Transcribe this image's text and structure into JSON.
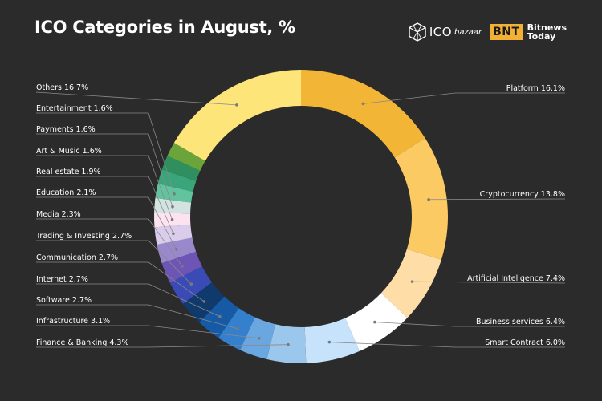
{
  "header": {
    "title": "ICO Categories in August, %",
    "logo_ico": "ICO",
    "logo_bazaar": "bazaar",
    "logo_bnt": "BNT",
    "logo_bitnews_line1": "Bitnews",
    "logo_bitnews_line2": "Today"
  },
  "chart_data": {
    "type": "donut",
    "title": "ICO Categories in August, %",
    "unit": "%",
    "segments": [
      {
        "name": "Platform",
        "value": 16.1,
        "label": "Platform 16.1%",
        "color": "#f2b535",
        "side": "right"
      },
      {
        "name": "Cryptocurrency",
        "value": 13.8,
        "label": "Cryptocurrency 13.8%",
        "color": "#fcca63",
        "side": "right"
      },
      {
        "name": "Artificial Inteligence",
        "value": 7.4,
        "label": "Artificial Inteligence 7.4%",
        "color": "#fedea6",
        "side": "right"
      },
      {
        "name": "Business services",
        "value": 6.4,
        "label": "Business services 6.4%",
        "color": "#ffffff",
        "side": "right"
      },
      {
        "name": "Smart Contract",
        "value": 6.0,
        "label": "Smart Contract 6.0%",
        "color": "#c6e3fb",
        "side": "right"
      },
      {
        "name": "Finance & Banking",
        "value": 4.3,
        "label": "Finance & Banking 4.3%",
        "color": "#9cc7ec",
        "side": "left"
      },
      {
        "name": "Infrastructure",
        "value": 3.1,
        "label": "Infrastructure 3.1%",
        "color": "#6aa7e1",
        "side": "left"
      },
      {
        "name": "Software",
        "value": 2.7,
        "label": "Software 2.7%",
        "color": "#3580cc",
        "side": "left"
      },
      {
        "name": "Internet",
        "value": 2.7,
        "label": "Internet 2.7%",
        "color": "#165aa6",
        "side": "left"
      },
      {
        "name": "Communication",
        "value": 2.7,
        "label": "Communication 2.7%",
        "color": "#0f3a6b",
        "side": "left"
      },
      {
        "name": "Trading & Investing",
        "value": 2.7,
        "label": "Trading & Investing 2.7%",
        "color": "#3b4bb5",
        "side": "left"
      },
      {
        "name": "Media",
        "value": 2.3,
        "label": "Media 2.3%",
        "color": "#6c55b4",
        "side": "left"
      },
      {
        "name": "Education",
        "value": 2.1,
        "label": "Education 2.1%",
        "color": "#9a88cc",
        "side": "left"
      },
      {
        "name": "Real estate",
        "value": 1.9,
        "label": "Real estate 1.9%",
        "color": "#d9cdeb",
        "side": "left"
      },
      {
        "name": "Art & Music",
        "value": 1.6,
        "label": "Art & Music 1.6%",
        "color": "#fde3f0",
        "side": "left"
      },
      {
        "name": "Payments",
        "value": 1.6,
        "label": "Payments 1.6%",
        "color": "#d2e3e0",
        "side": "left"
      },
      {
        "name": "Entertainment",
        "value": 1.6,
        "label": "Entertainment 1.6%",
        "color": "#62c49e",
        "side": "left"
      },
      {
        "name": "(unlabeled)",
        "value": 1.6,
        "label": "",
        "color": "#3aa57a",
        "side": "none"
      },
      {
        "name": "(unlabeled)",
        "value": 1.6,
        "label": "",
        "color": "#2f8f5e",
        "side": "none"
      },
      {
        "name": "(unlabeled)",
        "value": 1.6,
        "label": "",
        "color": "#6ba43a",
        "side": "none"
      },
      {
        "name": "Others",
        "value": 16.7,
        "label": "Others 16.7%",
        "color": "#fde579",
        "side": "left"
      }
    ]
  }
}
